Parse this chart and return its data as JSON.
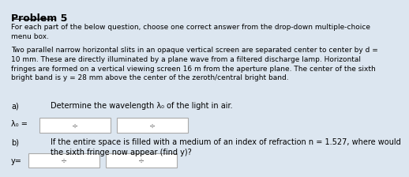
{
  "title": "Problem 5",
  "intro": "For each part of the below question, choose one correct answer from the drop-down multiple-choice\nmenu box.",
  "body": "Two parallel narrow horizontal slits in an opaque vertical screen are separated center to center by d =\n10 mm. These are directly illuminated by a plane wave from a filtered discharge lamp. Horizontal\nfringes are formed on a vertical viewing screen 16 m from the aperture plane. The center of the sixth\nbright band is y = 28 mm above the center of the zeroth/central bright band.",
  "part_a_label": "a)",
  "part_a_text": "Determine the wavelength λ₀ of the light in air.",
  "lambda_label": "λ₀ =",
  "part_b_label": "b)",
  "part_b_text": "If the entire space is filled with a medium of an index of refraction n = 1.527, where would\nthe sixth fringe now appear (find y)?",
  "y_label": "y=",
  "bg_color": "#dce6f0",
  "box_color": "#ffffff",
  "box_edge_color": "#aaaaaa",
  "title_fontsize": 9,
  "body_fontsize": 6.5,
  "label_fontsize": 7,
  "dropdown_symbol": "÷"
}
